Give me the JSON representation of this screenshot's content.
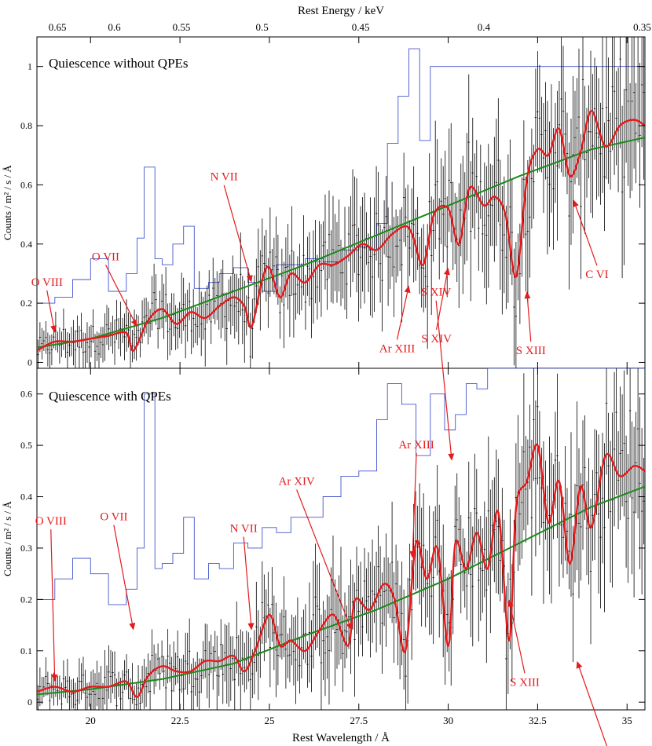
{
  "figure": {
    "top_axis_label": "Rest Energy / keV",
    "bottom_axis_label": "Rest Wavelength / Å",
    "ylabel_top": "Counts / m² / s / Å",
    "ylabel_bottom": "Counts / m² / s / Å",
    "colors": {
      "data": "#000000",
      "model_red": "#e41a1c",
      "continuum_green": "#1a8a1a",
      "background_blue": "#4455cc",
      "annotation": "#e41a1c"
    }
  },
  "chart_data": [
    {
      "type": "line",
      "title": "Quiescence without QPEs",
      "xlabel": "Rest Wavelength / Å",
      "ylabel": "Counts / m² / s / Å",
      "xlim": [
        18.5,
        35.5
      ],
      "ylim": [
        -0.02,
        1.1
      ],
      "xticks": [
        20,
        22.5,
        25,
        27.5,
        30,
        32.5,
        35
      ],
      "xtick_labels": [
        "20",
        "22.5",
        "25",
        "27.5",
        "30",
        "32.5",
        "35"
      ],
      "yticks": [
        0,
        0.2,
        0.4,
        0.6,
        0.8,
        1
      ],
      "ytick_labels": [
        "0",
        "0.2",
        "0.4",
        "0.6",
        "0.8",
        "1"
      ],
      "top_ticks": [
        0.65,
        0.6,
        0.55,
        0.5,
        0.45,
        0.4,
        0.35
      ],
      "top_tick_labels": [
        "0.65",
        "0.6",
        "0.55",
        "0.5",
        "0.45",
        "0.4",
        "0.35"
      ],
      "series": [
        {
          "name": "continuum model",
          "color": "#1a8a1a",
          "x": [
            18.5,
            20,
            22,
            24,
            26,
            28,
            30,
            32,
            34,
            35.5
          ],
          "y": [
            0.05,
            0.08,
            0.15,
            0.24,
            0.33,
            0.43,
            0.53,
            0.63,
            0.72,
            0.76
          ]
        },
        {
          "name": "line model",
          "color": "#e41a1c",
          "x": [
            18.5,
            19.0,
            19.5,
            20.0,
            20.5,
            21.0,
            21.2,
            21.6,
            22.0,
            22.4,
            22.8,
            23.2,
            23.6,
            24.0,
            24.3,
            24.5,
            24.8,
            25.0,
            25.3,
            25.6,
            26.0,
            26.4,
            26.8,
            27.2,
            27.6,
            28.0,
            28.4,
            28.8,
            29.0,
            29.3,
            29.6,
            30.0,
            30.3,
            30.6,
            31.0,
            31.3,
            31.6,
            31.9,
            32.2,
            32.5,
            32.8,
            33.1,
            33.4,
            33.7,
            34.0,
            34.4,
            34.8,
            35.2,
            35.5
          ],
          "y": [
            0.04,
            0.07,
            0.07,
            0.08,
            0.09,
            0.1,
            0.04,
            0.14,
            0.18,
            0.13,
            0.17,
            0.15,
            0.19,
            0.22,
            0.19,
            0.12,
            0.28,
            0.32,
            0.22,
            0.3,
            0.27,
            0.33,
            0.33,
            0.36,
            0.4,
            0.38,
            0.43,
            0.46,
            0.43,
            0.33,
            0.5,
            0.52,
            0.4,
            0.59,
            0.53,
            0.56,
            0.5,
            0.29,
            0.62,
            0.72,
            0.7,
            0.79,
            0.63,
            0.71,
            0.85,
            0.73,
            0.8,
            0.82,
            0.8
          ]
        },
        {
          "name": "background spectrum",
          "color": "#4455cc",
          "x": [
            18.5,
            19.0,
            19.5,
            20.0,
            20.5,
            21.0,
            21.3,
            21.5,
            21.8,
            22.0,
            22.3,
            22.6,
            22.9,
            23.3,
            23.6,
            24.0,
            24.4,
            24.8,
            25.2,
            25.5,
            26.0,
            26.5,
            27.0,
            27.5,
            27.8,
            28.0,
            28.3,
            28.6,
            28.9,
            29.2,
            29.5,
            29.8,
            30.1,
            30.4,
            30.7,
            31.0,
            31.3,
            31.6,
            32.0,
            32.5,
            33.0,
            33.5,
            34.0,
            34.5,
            35.0,
            35.5
          ],
          "y": [
            0.2,
            0.22,
            0.28,
            0.35,
            0.24,
            0.3,
            0.42,
            0.66,
            0.35,
            0.33,
            0.4,
            0.46,
            0.25,
            0.27,
            0.3,
            0.32,
            0.27,
            0.24,
            0.33,
            0.33,
            0.35,
            0.34,
            0.38,
            0.39,
            0.38,
            0.47,
            0.74,
            0.9,
            1.06,
            0.75,
            1.0,
            1.0,
            1.0,
            1.0,
            1.0,
            1.0,
            1.0,
            1.0,
            1.0,
            1.0,
            1.0,
            1.0,
            1.0,
            1.0,
            1.0,
            1.0
          ]
        }
      ],
      "annotations": [
        {
          "text": "O VIII",
          "x": 19.0,
          "y": 0.1
        },
        {
          "text": "O VII",
          "x": 21.3,
          "y": 0.12
        },
        {
          "text": "N VII",
          "x": 24.5,
          "y": 0.27
        },
        {
          "text": "Ar XIII",
          "x": 28.9,
          "y": 0.26
        },
        {
          "text": "S XIV",
          "x": 30.0,
          "y": 0.32
        },
        {
          "text": "S XIII",
          "x": 32.2,
          "y": 0.24
        },
        {
          "text": "C VI",
          "x": 33.5,
          "y": 0.55
        }
      ]
    },
    {
      "type": "line",
      "title": "Quiescence with QPEs",
      "xlabel": "Rest Wavelength / Å",
      "ylabel": "Counts / m² / s / Å",
      "xlim": [
        18.5,
        35.5
      ],
      "ylim": [
        -0.015,
        0.65
      ],
      "xticks": [
        20,
        22.5,
        25,
        27.5,
        30,
        32.5,
        35
      ],
      "xtick_labels": [
        "20",
        "22.5",
        "25",
        "27.5",
        "30",
        "32.5",
        "35"
      ],
      "yticks": [
        0,
        0.1,
        0.2,
        0.3,
        0.4,
        0.5,
        0.6
      ],
      "ytick_labels": [
        "0",
        "0.1",
        "0.2",
        "0.3",
        "0.4",
        "0.5",
        "0.6"
      ],
      "series": [
        {
          "name": "continuum model",
          "color": "#1a8a1a",
          "x": [
            18.5,
            20,
            22,
            24,
            26,
            28,
            30,
            32,
            34,
            35.5
          ],
          "y": [
            0.015,
            0.025,
            0.045,
            0.075,
            0.13,
            0.18,
            0.24,
            0.31,
            0.38,
            0.42
          ]
        },
        {
          "name": "line model",
          "color": "#e41a1c",
          "x": [
            18.5,
            19.0,
            19.5,
            20.0,
            20.5,
            21.0,
            21.3,
            21.6,
            22.0,
            22.4,
            22.8,
            23.2,
            23.6,
            24.0,
            24.3,
            24.6,
            25.0,
            25.3,
            25.6,
            26.0,
            26.4,
            26.8,
            27.2,
            27.4,
            27.8,
            28.2,
            28.5,
            28.8,
            29.1,
            29.4,
            29.7,
            30.0,
            30.2,
            30.5,
            30.8,
            31.1,
            31.4,
            31.7,
            31.9,
            32.2,
            32.5,
            32.8,
            33.1,
            33.4,
            33.7,
            34.0,
            34.4,
            34.8,
            35.2,
            35.5
          ],
          "y": [
            0.02,
            0.03,
            0.02,
            0.03,
            0.03,
            0.04,
            0.01,
            0.05,
            0.07,
            0.06,
            0.06,
            0.08,
            0.08,
            0.09,
            0.06,
            0.1,
            0.17,
            0.11,
            0.12,
            0.1,
            0.14,
            0.17,
            0.11,
            0.2,
            0.18,
            0.23,
            0.2,
            0.1,
            0.31,
            0.24,
            0.3,
            0.11,
            0.31,
            0.26,
            0.33,
            0.26,
            0.37,
            0.12,
            0.38,
            0.43,
            0.5,
            0.35,
            0.43,
            0.27,
            0.42,
            0.34,
            0.48,
            0.44,
            0.46,
            0.45
          ]
        },
        {
          "name": "background spectrum",
          "color": "#4455cc",
          "x": [
            18.5,
            19.0,
            19.5,
            20.0,
            20.5,
            21.0,
            21.3,
            21.5,
            21.8,
            22.0,
            22.3,
            22.6,
            22.9,
            23.3,
            23.6,
            24.0,
            24.4,
            24.8,
            25.2,
            25.6,
            26.0,
            26.5,
            27.0,
            27.5,
            28.0,
            28.3,
            28.7,
            29.1,
            29.5,
            29.9,
            30.2,
            30.5,
            30.8,
            31.1,
            31.5,
            32.0,
            32.5,
            33.0,
            33.5,
            34.0,
            34.5,
            35.0,
            35.5
          ],
          "y": [
            0.2,
            0.24,
            0.28,
            0.25,
            0.19,
            0.22,
            0.3,
            0.6,
            0.26,
            0.27,
            0.29,
            0.36,
            0.24,
            0.27,
            0.26,
            0.31,
            0.3,
            0.34,
            0.33,
            0.36,
            0.36,
            0.4,
            0.44,
            0.45,
            0.55,
            0.62,
            0.58,
            0.48,
            0.6,
            0.53,
            0.56,
            0.62,
            0.61,
            0.65,
            0.65,
            0.65,
            0.65,
            0.65,
            0.65,
            0.65,
            0.65,
            0.65,
            0.65
          ]
        }
      ],
      "annotations": [
        {
          "text": "O VIII",
          "x": 19.0,
          "y": 0.04
        },
        {
          "text": "O VII",
          "x": 21.2,
          "y": 0.14
        },
        {
          "text": "N VII",
          "x": 24.5,
          "y": 0.14
        },
        {
          "text": "Ar XIV",
          "x": 27.3,
          "y": 0.14
        },
        {
          "text": "Ar XIII",
          "x": 29.0,
          "y": 0.28
        },
        {
          "text": "S XIV",
          "x": 30.1,
          "y": 0.47
        },
        {
          "text": "S XIII",
          "x": 31.7,
          "y": 0.2
        },
        {
          "text": "C VI",
          "x": 33.6,
          "y": 0.08
        }
      ]
    }
  ]
}
